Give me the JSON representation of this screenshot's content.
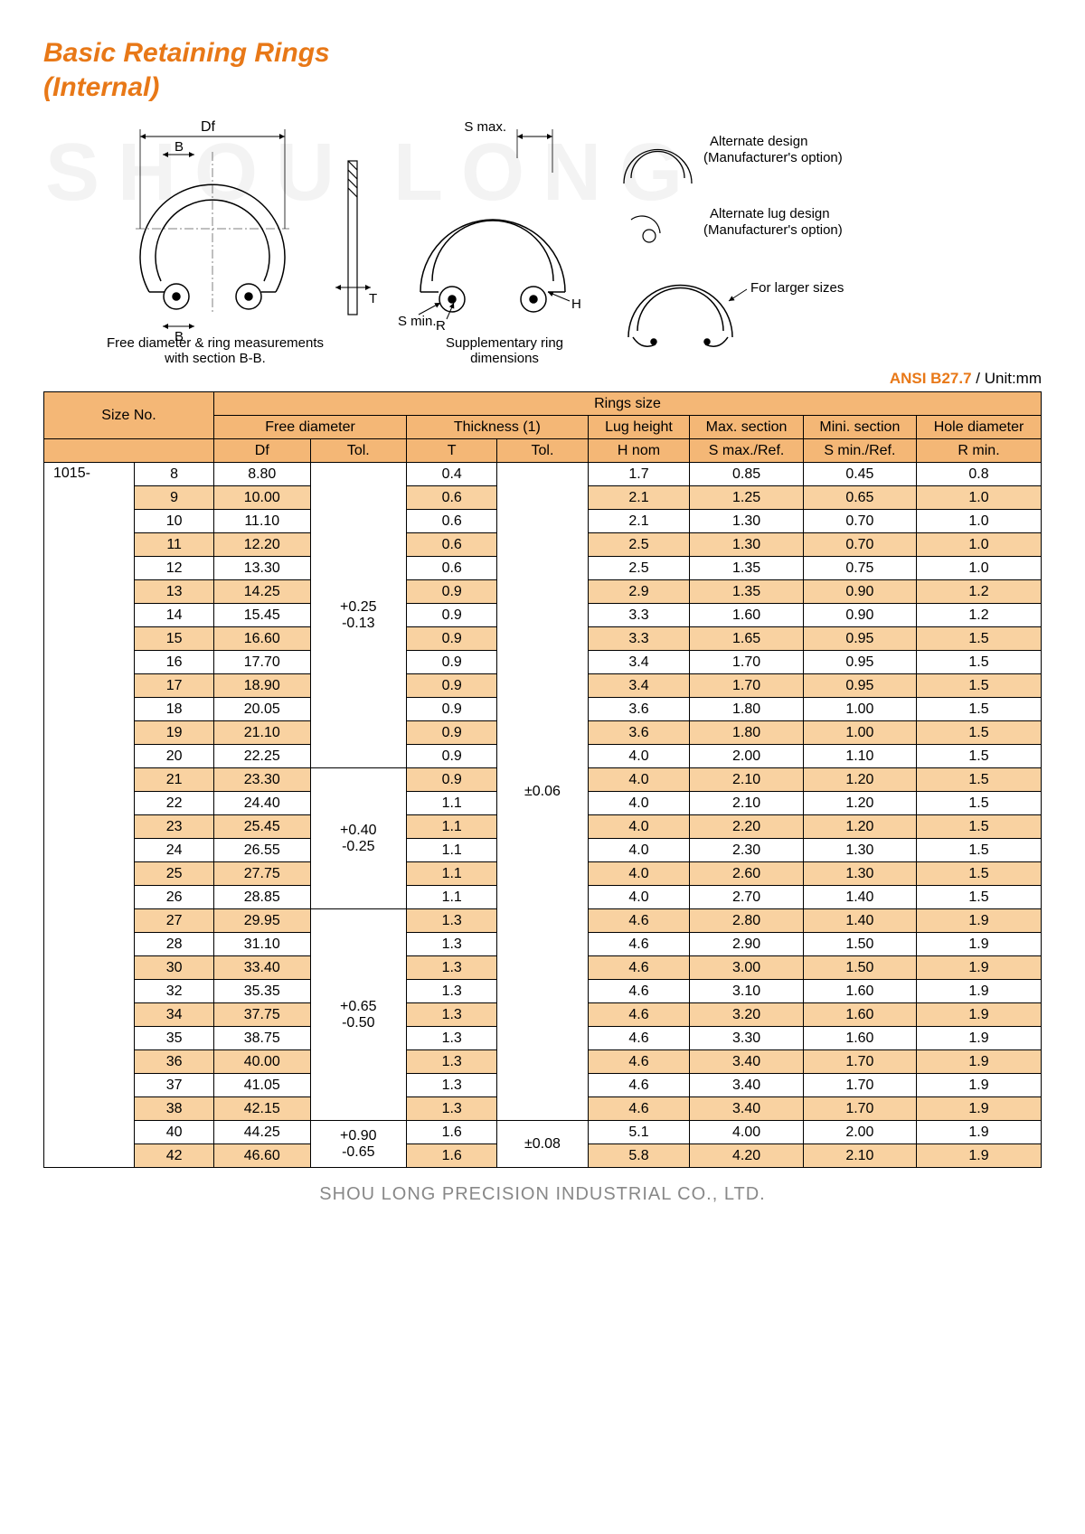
{
  "title_line1": "Basic Retaining Rings",
  "title_line2": "(Internal)",
  "watermark": "SHOU LONG",
  "diagram": {
    "dim_Df": "Df",
    "dim_B1": "B",
    "dim_B2": "B",
    "dim_T": "T",
    "dim_R": "R",
    "dim_H": "H",
    "dim_Smin": "S min.",
    "dim_Smax": "S max.",
    "caption1_a": "Free diameter & ring measurements",
    "caption1_b": "with section B-B.",
    "caption2_a": "Supplementary ring",
    "caption2_b": "dimensions",
    "alt_design_a": "Alternate design",
    "alt_design_b": "(Manufacturer's option)",
    "alt_lug_a": "Alternate lug design",
    "alt_lug_b": "(Manufacturer's option)",
    "for_larger": "For larger sizes"
  },
  "standard": "ANSI B27.7",
  "unit_label": " / Unit:mm",
  "headers": {
    "size_no": "Size No.",
    "rings_size": "Rings size",
    "free_diameter": "Free diameter",
    "thickness": "Thickness (1)",
    "lug_height": "Lug height",
    "max_section": "Max. section",
    "min_section": "Mini. section",
    "hole_diameter": "Hole diameter",
    "Df": "Df",
    "Tol": "Tol.",
    "T": "T",
    "Hnom": "H nom",
    "Smax": "S max./Ref.",
    "Smin": "S min./Ref.",
    "Rmin": "R min."
  },
  "size_prefix": "1015-",
  "tol_groups_df": [
    {
      "text_top": "+0.25",
      "text_bot": "-0.13",
      "span": 13
    },
    {
      "text_top": "+0.40",
      "text_bot": "-0.25",
      "span": 6
    },
    {
      "text_top": "+0.65",
      "text_bot": "-0.50",
      "span": 9
    },
    {
      "text_top": "+0.90",
      "text_bot": "-0.65",
      "span": 2
    }
  ],
  "tol_groups_t": [
    {
      "text": "±0.06",
      "span": 28
    },
    {
      "text": "±0.08",
      "span": 2
    }
  ],
  "rows": [
    {
      "n": "8",
      "df": "8.80",
      "t": "0.4",
      "h": "1.7",
      "smax": "0.85",
      "smin": "0.45",
      "r": "0.8"
    },
    {
      "n": "9",
      "df": "10.00",
      "t": "0.6",
      "h": "2.1",
      "smax": "1.25",
      "smin": "0.65",
      "r": "1.0"
    },
    {
      "n": "10",
      "df": "11.10",
      "t": "0.6",
      "h": "2.1",
      "smax": "1.30",
      "smin": "0.70",
      "r": "1.0"
    },
    {
      "n": "11",
      "df": "12.20",
      "t": "0.6",
      "h": "2.5",
      "smax": "1.30",
      "smin": "0.70",
      "r": "1.0"
    },
    {
      "n": "12",
      "df": "13.30",
      "t": "0.6",
      "h": "2.5",
      "smax": "1.35",
      "smin": "0.75",
      "r": "1.0"
    },
    {
      "n": "13",
      "df": "14.25",
      "t": "0.9",
      "h": "2.9",
      "smax": "1.35",
      "smin": "0.90",
      "r": "1.2"
    },
    {
      "n": "14",
      "df": "15.45",
      "t": "0.9",
      "h": "3.3",
      "smax": "1.60",
      "smin": "0.90",
      "r": "1.2"
    },
    {
      "n": "15",
      "df": "16.60",
      "t": "0.9",
      "h": "3.3",
      "smax": "1.65",
      "smin": "0.95",
      "r": "1.5"
    },
    {
      "n": "16",
      "df": "17.70",
      "t": "0.9",
      "h": "3.4",
      "smax": "1.70",
      "smin": "0.95",
      "r": "1.5"
    },
    {
      "n": "17",
      "df": "18.90",
      "t": "0.9",
      "h": "3.4",
      "smax": "1.70",
      "smin": "0.95",
      "r": "1.5"
    },
    {
      "n": "18",
      "df": "20.05",
      "t": "0.9",
      "h": "3.6",
      "smax": "1.80",
      "smin": "1.00",
      "r": "1.5"
    },
    {
      "n": "19",
      "df": "21.10",
      "t": "0.9",
      "h": "3.6",
      "smax": "1.80",
      "smin": "1.00",
      "r": "1.5"
    },
    {
      "n": "20",
      "df": "22.25",
      "t": "0.9",
      "h": "4.0",
      "smax": "2.00",
      "smin": "1.10",
      "r": "1.5"
    },
    {
      "n": "21",
      "df": "23.30",
      "t": "0.9",
      "h": "4.0",
      "smax": "2.10",
      "smin": "1.20",
      "r": "1.5"
    },
    {
      "n": "22",
      "df": "24.40",
      "t": "1.1",
      "h": "4.0",
      "smax": "2.10",
      "smin": "1.20",
      "r": "1.5"
    },
    {
      "n": "23",
      "df": "25.45",
      "t": "1.1",
      "h": "4.0",
      "smax": "2.20",
      "smin": "1.20",
      "r": "1.5"
    },
    {
      "n": "24",
      "df": "26.55",
      "t": "1.1",
      "h": "4.0",
      "smax": "2.30",
      "smin": "1.30",
      "r": "1.5"
    },
    {
      "n": "25",
      "df": "27.75",
      "t": "1.1",
      "h": "4.0",
      "smax": "2.60",
      "smin": "1.30",
      "r": "1.5"
    },
    {
      "n": "26",
      "df": "28.85",
      "t": "1.1",
      "h": "4.0",
      "smax": "2.70",
      "smin": "1.40",
      "r": "1.5"
    },
    {
      "n": "27",
      "df": "29.95",
      "t": "1.3",
      "h": "4.6",
      "smax": "2.80",
      "smin": "1.40",
      "r": "1.9"
    },
    {
      "n": "28",
      "df": "31.10",
      "t": "1.3",
      "h": "4.6",
      "smax": "2.90",
      "smin": "1.50",
      "r": "1.9"
    },
    {
      "n": "30",
      "df": "33.40",
      "t": "1.3",
      "h": "4.6",
      "smax": "3.00",
      "smin": "1.50",
      "r": "1.9"
    },
    {
      "n": "32",
      "df": "35.35",
      "t": "1.3",
      "h": "4.6",
      "smax": "3.10",
      "smin": "1.60",
      "r": "1.9"
    },
    {
      "n": "34",
      "df": "37.75",
      "t": "1.3",
      "h": "4.6",
      "smax": "3.20",
      "smin": "1.60",
      "r": "1.9"
    },
    {
      "n": "35",
      "df": "38.75",
      "t": "1.3",
      "h": "4.6",
      "smax": "3.30",
      "smin": "1.60",
      "r": "1.9"
    },
    {
      "n": "36",
      "df": "40.00",
      "t": "1.3",
      "h": "4.6",
      "smax": "3.40",
      "smin": "1.70",
      "r": "1.9"
    },
    {
      "n": "37",
      "df": "41.05",
      "t": "1.3",
      "h": "4.6",
      "smax": "3.40",
      "smin": "1.70",
      "r": "1.9"
    },
    {
      "n": "38",
      "df": "42.15",
      "t": "1.3",
      "h": "4.6",
      "smax": "3.40",
      "smin": "1.70",
      "r": "1.9"
    },
    {
      "n": "40",
      "df": "44.25",
      "t": "1.6",
      "h": "5.1",
      "smax": "4.00",
      "smin": "2.00",
      "r": "1.9"
    },
    {
      "n": "42",
      "df": "46.60",
      "t": "1.6",
      "h": "5.8",
      "smax": "4.20",
      "smin": "2.10",
      "r": "1.9"
    }
  ],
  "footer": "SHOU LONG PRECISION INDUSTRIAL CO., LTD.",
  "colors": {
    "accent": "#e87817",
    "header_bg": "#f4b776",
    "alt_row_bg": "#f9d2a1",
    "footer_text": "#888888"
  },
  "col_widths_pct": [
    8,
    7,
    8.5,
    8.5,
    8,
    8,
    9,
    10,
    10,
    11
  ]
}
